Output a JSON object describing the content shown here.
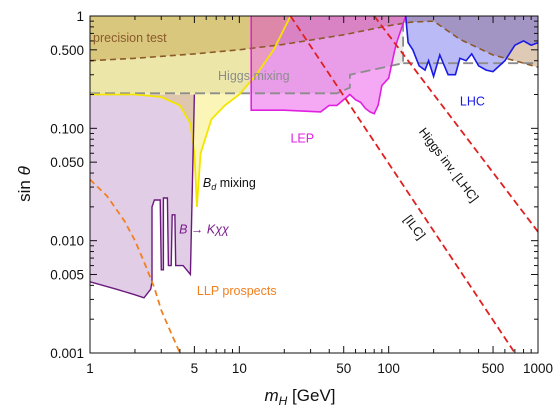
{
  "chart_data": {
    "type": "area",
    "xlabel": "m_H [GeV]",
    "ylabel": "sin θ",
    "xscale": "log",
    "yscale": "log",
    "xlim": [
      1,
      1000
    ],
    "ylim": [
      0.001,
      1
    ],
    "grid": false,
    "x_ticks": [
      {
        "value": 1,
        "label": "1"
      },
      {
        "value": 5,
        "label": "5"
      },
      {
        "value": 10,
        "label": "10"
      },
      {
        "value": 50,
        "label": "50"
      },
      {
        "value": 100,
        "label": "100"
      },
      {
        "value": 500,
        "label": "500"
      },
      {
        "value": 1000,
        "label": "1000"
      }
    ],
    "y_ticks": [
      {
        "value": 0.001,
        "label": "0.001"
      },
      {
        "value": 0.005,
        "label": "0.005"
      },
      {
        "value": 0.01,
        "label": "0.010"
      },
      {
        "value": 0.05,
        "label": "0.050"
      },
      {
        "value": 0.1,
        "label": "0.100"
      },
      {
        "value": 0.5,
        "label": "0.500"
      },
      {
        "value": 1,
        "label": "1"
      }
    ],
    "regions": [
      {
        "key": "precision",
        "label": "precision test",
        "color": "#a0682c",
        "boundary": [
          [
            1,
            0.4
          ],
          [
            2,
            0.42
          ],
          [
            5,
            0.46
          ],
          [
            10,
            0.5
          ],
          [
            20,
            0.56
          ],
          [
            50,
            0.68
          ],
          [
            100,
            0.82
          ],
          [
            140,
            0.88
          ],
          [
            200,
            0.9
          ]
        ],
        "lower_boundary": [
          [
            200,
            0.9
          ],
          [
            300,
            0.62
          ],
          [
            500,
            0.45
          ],
          [
            700,
            0.4
          ],
          [
            1000,
            0.35
          ]
        ]
      },
      {
        "key": "higgs_mixing",
        "label": "Higgs mixing",
        "color": "#888888",
        "boundary": [
          [
            1,
            0.205
          ],
          [
            45,
            0.205
          ],
          [
            55,
            0.23
          ],
          [
            55,
            0.3
          ],
          [
            125,
            0.38
          ],
          [
            125,
            1
          ]
        ]
      },
      {
        "key": "lhc",
        "label": "LHC",
        "color": "#1a1ae6",
        "boundary": [
          [
            130,
            1
          ],
          [
            135,
            0.58
          ],
          [
            145,
            0.5
          ],
          [
            160,
            0.36
          ],
          [
            175,
            0.33
          ],
          [
            185,
            0.4
          ],
          [
            200,
            0.29
          ],
          [
            220,
            0.45
          ],
          [
            250,
            0.3
          ],
          [
            280,
            0.3
          ],
          [
            300,
            0.42
          ],
          [
            330,
            0.4
          ],
          [
            360,
            0.46
          ],
          [
            400,
            0.36
          ],
          [
            450,
            0.33
          ],
          [
            500,
            0.32
          ],
          [
            600,
            0.4
          ],
          [
            700,
            0.55
          ],
          [
            800,
            0.6
          ],
          [
            900,
            0.55
          ],
          [
            1000,
            0.58
          ]
        ]
      },
      {
        "key": "lep",
        "label": "LEP",
        "color": "#e633e6",
        "boundary": [
          [
            12,
            1
          ],
          [
            12,
            0.145
          ],
          [
            20,
            0.145
          ],
          [
            35,
            0.14
          ],
          [
            40,
            0.16
          ],
          [
            45,
            0.16
          ],
          [
            55,
            0.2
          ],
          [
            60,
            0.18
          ],
          [
            65,
            0.17
          ],
          [
            70,
            0.15
          ],
          [
            75,
            0.14
          ],
          [
            80,
            0.135
          ],
          [
            85,
            0.16
          ],
          [
            90,
            0.24
          ],
          [
            100,
            0.28
          ],
          [
            110,
            0.5
          ],
          [
            114,
            0.6
          ],
          [
            130,
            1
          ]
        ]
      },
      {
        "key": "bd_mixing",
        "label": "B_d mixing",
        "color": "#f0e000",
        "boundary": [
          [
            1,
            0.2
          ],
          [
            2,
            0.2
          ],
          [
            3,
            0.19
          ],
          [
            4,
            0.16
          ],
          [
            4.7,
            0.11
          ],
          [
            5.0,
            0.06
          ],
          [
            5.2,
            0.02
          ],
          [
            5.5,
            0.06
          ],
          [
            6.5,
            0.12
          ],
          [
            8,
            0.16
          ],
          [
            10,
            0.2
          ],
          [
            13,
            0.3
          ],
          [
            17,
            0.5
          ],
          [
            22,
            1
          ]
        ]
      },
      {
        "key": "bkchichi",
        "label": "B → Kχχ",
        "color": "#7a1a8c",
        "boundary": [
          [
            1,
            0.0043
          ],
          [
            1.5,
            0.0037
          ],
          [
            2,
            0.0033
          ],
          [
            2.3,
            0.0031
          ],
          [
            2.55,
            0.0037
          ],
          [
            2.6,
            0.0043
          ],
          [
            2.6,
            0.02
          ],
          [
            2.7,
            0.023
          ],
          [
            2.95,
            0.023
          ],
          [
            3.0,
            0.0055
          ],
          [
            3.1,
            0.0055
          ],
          [
            3.1,
            0.024
          ],
          [
            3.3,
            0.024
          ],
          [
            3.35,
            0.006
          ],
          [
            3.5,
            0.006
          ],
          [
            3.55,
            0.017
          ],
          [
            3.7,
            0.017
          ],
          [
            3.75,
            0.006
          ],
          [
            4.2,
            0.006
          ],
          [
            4.7,
            0.005
          ]
        ]
      },
      {
        "key": "llp",
        "label": "LLP prospects",
        "color": "#f08020",
        "line": [
          [
            1,
            0.035
          ],
          [
            1.3,
            0.025
          ],
          [
            1.7,
            0.015
          ],
          [
            2,
            0.01
          ],
          [
            2.3,
            0.0065
          ],
          [
            2.7,
            0.0038
          ],
          [
            3.0,
            0.0024
          ],
          [
            3.5,
            0.0015
          ],
          [
            4,
            0.001
          ]
        ]
      },
      {
        "key": "inv_ilc",
        "label": "[ILC]",
        "color": "#e02020",
        "line": [
          [
            22,
            1
          ],
          [
            700,
            0.001
          ]
        ]
      },
      {
        "key": "inv_lhc",
        "label": "Higgs inv. [LHC]",
        "color": "#e02020",
        "line": [
          [
            80,
            1
          ],
          [
            1000,
            0.012
          ]
        ]
      }
    ],
    "annotations": [
      {
        "key": "precision",
        "text": "precision test"
      },
      {
        "key": "higgs_mixing",
        "text": "Higgs mixing"
      },
      {
        "key": "lhc",
        "text": "LHC"
      },
      {
        "key": "lep",
        "text": "LEP"
      },
      {
        "key": "bd_mixing",
        "text": "B_d mixing"
      },
      {
        "key": "bkchichi",
        "text": "B → Kχχ"
      },
      {
        "key": "llp",
        "text": "LLP prospects"
      },
      {
        "key": "inv_lhc",
        "text": "Higgs inv. [LHC]"
      },
      {
        "key": "inv_ilc",
        "text": "[ILC]"
      }
    ]
  }
}
